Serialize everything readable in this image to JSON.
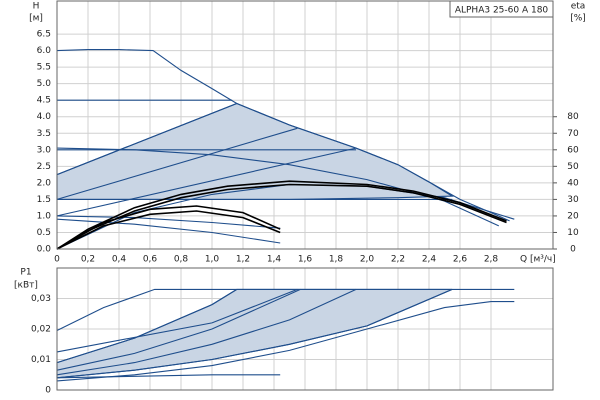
{
  "chart_data": [
    {
      "type": "line",
      "title": "ALPHA3 25-60 A 180",
      "ylabel": "H",
      "yunit": "[м]",
      "y2label": "eta",
      "y2unit": "[%]",
      "xlabel": "Q [м³/ч]",
      "xlim": [
        0,
        3.2
      ],
      "ylim": [
        0,
        7.5
      ],
      "y2lim": [
        0,
        150
      ],
      "grid": true,
      "show_xtick_labels": true,
      "xticks": [
        0,
        {
          "value": 0.2,
          "label": "0,2"
        },
        {
          "value": 0.4,
          "label": "0,4"
        },
        {
          "value": 0.6,
          "label": "0,6"
        },
        {
          "value": 0.8,
          "label": "0,8"
        },
        {
          "value": 1.0,
          "label": "1,0"
        },
        {
          "value": 1.2,
          "label": "1,2"
        },
        {
          "value": 1.4,
          "label": "1,4"
        },
        {
          "value": 1.6,
          "label": "1,6"
        },
        {
          "value": 1.8,
          "label": "1,8"
        },
        {
          "value": 2.0,
          "label": "2,0"
        },
        {
          "value": 2.2,
          "label": "2,2"
        },
        {
          "value": 2.4,
          "label": "2,4"
        },
        {
          "value": 2.6,
          "label": "2,6"
        },
        {
          "value": 2.8,
          "label": "2,8"
        }
      ],
      "yticks": [
        {
          "value": 0,
          "label": "0.0"
        },
        0.5,
        {
          "value": 1,
          "label": "1.0"
        },
        1.5,
        {
          "value": 2,
          "label": "2.0"
        },
        2.5,
        {
          "value": 3,
          "label": "3.0"
        },
        3.5,
        {
          "value": 4,
          "label": "4.0"
        },
        4.5,
        {
          "value": 5,
          "label": "5.0"
        },
        5.5,
        {
          "value": 6,
          "label": "6.0"
        },
        6.5
      ],
      "y2ticks": [
        0,
        10,
        20,
        30,
        40,
        50,
        60,
        70,
        80
      ],
      "series": [
        {
          "fill": "#c9d5e4",
          "color": "#1f4e8c",
          "x": [
            0,
            1.16,
            1.5,
            1.93,
            2.2,
            2.41,
            2.55,
            2.2,
            1.5,
            1.0,
            0.5,
            0
          ],
          "values": [
            2.25,
            4.4,
            3.75,
            3.05,
            2.55,
            2.0,
            1.6,
            1.55,
            1.5,
            1.5,
            1.5,
            1.5
          ]
        },
        {
          "color": "#1f4e8c",
          "x": [
            0,
            0.2,
            0.4,
            0.62,
            0.8,
            1.0,
            1.16,
            1.5,
            1.93,
            2.2,
            2.41,
            2.6,
            2.8,
            2.92
          ],
          "values": [
            6.0,
            6.03,
            6.03,
            6.0,
            5.4,
            4.85,
            4.4,
            3.75,
            3.05,
            2.55,
            2.0,
            1.5,
            1.1,
            0.85
          ]
        },
        {
          "color": "#1f4e8c",
          "x": [
            0,
            1.13
          ],
          "values": [
            4.5,
            4.5
          ]
        },
        {
          "color": "#1f4e8c",
          "x": [
            0,
            1.93
          ],
          "values": [
            3.0,
            3.0
          ]
        },
        {
          "color": "#1f4e8c",
          "x": [
            0,
            2.55
          ],
          "values": [
            1.5,
            1.5
          ]
        },
        {
          "color": "#1f4e8c",
          "x": [
            0,
            1.16
          ],
          "values": [
            2.25,
            4.4
          ]
        },
        {
          "color": "#1f4e8c",
          "x": [
            0,
            1.55
          ],
          "values": [
            1.5,
            3.65
          ]
        },
        {
          "color": "#1f4e8c",
          "x": [
            0,
            1.93
          ],
          "values": [
            1.0,
            3.05
          ]
        },
        {
          "color": "#1f4e8c",
          "x": [
            0,
            0.5,
            1.0,
            1.5,
            2.0,
            2.5,
            2.85
          ],
          "values": [
            3.05,
            3.0,
            2.85,
            2.55,
            2.1,
            1.45,
            0.7
          ]
        },
        {
          "color": "#1f4e8c",
          "x": [
            0,
            0.5,
            1.0,
            1.44
          ],
          "values": [
            0.9,
            0.75,
            0.5,
            0.18
          ]
        },
        {
          "color": "#1f4e8c",
          "x": [
            0,
            0.5,
            1.0,
            1.44
          ],
          "values": [
            1.0,
            0.95,
            0.8,
            0.63
          ]
        },
        {
          "color": "#1f4e8c",
          "axis": "y2",
          "x": [
            0,
            0.5,
            1.0,
            1.5,
            2.0,
            2.5,
            2.95
          ],
          "values": [
            0,
            22,
            33,
            39,
            38,
            31,
            18
          ]
        },
        {
          "color": "#000000",
          "axis": "y2",
          "x": [
            0,
            0.2,
            0.5,
            0.8,
            1.1,
            1.5,
            2.0,
            2.3,
            2.6,
            2.9
          ],
          "values": [
            0,
            12,
            25,
            33,
            38,
            41,
            39,
            35,
            28,
            17
          ]
        },
        {
          "color": "#000000",
          "axis": "y2",
          "x": [
            0,
            0.2,
            0.5,
            0.8,
            1.1,
            1.5,
            2.0,
            2.3,
            2.6,
            2.9
          ],
          "values": [
            0,
            11,
            23,
            31,
            36,
            39,
            38,
            34,
            27,
            16
          ]
        },
        {
          "color": "#000000",
          "axis": "y2",
          "x": [
            0,
            0.3,
            0.6,
            0.9,
            1.2,
            1.44
          ],
          "values": [
            0,
            16,
            24,
            26,
            22,
            12
          ]
        },
        {
          "color": "#000000",
          "axis": "y2",
          "x": [
            0,
            0.3,
            0.6,
            0.9,
            1.2,
            1.44
          ],
          "values": [
            0,
            14,
            21,
            23,
            19,
            10
          ]
        }
      ]
    },
    {
      "type": "line",
      "ylabel": "P1",
      "yunit": "[кВт]",
      "xlim": [
        0,
        3.2
      ],
      "ylim": [
        0,
        0.04
      ],
      "grid": true,
      "show_xtick_labels": false,
      "xticks": [
        0,
        0.2,
        0.4,
        0.6,
        0.8,
        1.0,
        1.2,
        1.4,
        1.6,
        1.8,
        2.0,
        2.2,
        2.4,
        2.6,
        2.8
      ],
      "yticks": [
        0,
        {
          "value": 0.01,
          "label": "0,01"
        },
        {
          "value": 0.02,
          "label": "0,02"
        },
        {
          "value": 0.03,
          "label": "0,03"
        }
      ],
      "series": [
        {
          "fill": "#c9d5e4",
          "color": "#1f4e8c",
          "x": [
            0,
            0.5,
            1.0,
            1.16,
            2.55,
            2.0,
            1.5,
            1.0,
            0.5,
            0
          ],
          "values": [
            0.009,
            0.017,
            0.028,
            0.033,
            0.033,
            0.021,
            0.015,
            0.01,
            0.0065,
            0.004
          ]
        },
        {
          "color": "#1f4e8c",
          "x": [
            0,
            0.3,
            0.63,
            2.95
          ],
          "values": [
            0.0195,
            0.027,
            0.033,
            0.033
          ]
        },
        {
          "color": "#1f4e8c",
          "x": [
            0,
            0.5,
            1.0,
            1.16
          ],
          "values": [
            0.009,
            0.017,
            0.028,
            0.033
          ]
        },
        {
          "color": "#1f4e8c",
          "x": [
            0,
            0.5,
            1.0,
            1.57
          ],
          "values": [
            0.0065,
            0.012,
            0.02,
            0.033
          ]
        },
        {
          "color": "#1f4e8c",
          "x": [
            0,
            0.5,
            1.0,
            1.5,
            1.93
          ],
          "values": [
            0.005,
            0.009,
            0.015,
            0.023,
            0.033
          ]
        },
        {
          "color": "#1f4e8c",
          "x": [
            0,
            0.5,
            1.0,
            1.5,
            2.0,
            2.55
          ],
          "values": [
            0.004,
            0.0065,
            0.01,
            0.015,
            0.021,
            0.033
          ]
        },
        {
          "color": "#1f4e8c",
          "x": [
            0,
            1.0,
            1.55
          ],
          "values": [
            0.0125,
            0.022,
            0.033
          ]
        },
        {
          "color": "#1f4e8c",
          "x": [
            0,
            0.5,
            1.0,
            1.5,
            2.0,
            2.5,
            2.8,
            2.95
          ],
          "values": [
            0.003,
            0.005,
            0.008,
            0.013,
            0.02,
            0.027,
            0.029,
            0.029
          ]
        },
        {
          "color": "#1f4e8c",
          "x": [
            0,
            0.5,
            1.0,
            1.44
          ],
          "values": [
            0.004,
            0.0045,
            0.005,
            0.005
          ]
        }
      ]
    }
  ]
}
